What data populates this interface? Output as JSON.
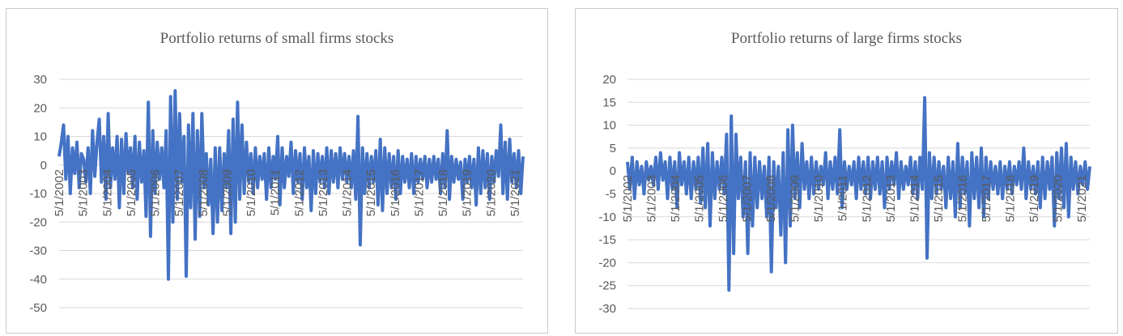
{
  "chart_data": [
    {
      "type": "line",
      "title": "Portfolio returns of small firms stocks",
      "xlabel": "",
      "ylabel": "",
      "ylim": [
        -50,
        30
      ],
      "yticks": [
        "30",
        "20",
        "10",
        "0",
        "-10",
        "-20",
        "-30",
        "-40",
        "-50"
      ],
      "xticks": [
        "5/1/2002",
        "5/1/2003",
        "5/1/2004",
        "5/1/2005",
        "5/1/2006",
        "5/1/2007",
        "5/1/2008",
        "5/1/2009",
        "5/1/2010",
        "5/1/2011",
        "5/1/2012",
        "5/1/2013",
        "5/1/2014",
        "5/1/2015",
        "5/1/2016",
        "5/1/2017",
        "5/1/2018",
        "5/1/2019",
        "5/1/2020",
        "5/1/2021"
      ],
      "grid": true,
      "series": [
        {
          "color": "#4472c4",
          "values": [
            3,
            8,
            14,
            -5,
            10,
            -10,
            6,
            -3,
            8,
            -8,
            4,
            2,
            -6,
            6,
            -10,
            12,
            -4,
            8,
            16,
            -6,
            10,
            -12,
            18,
            -8,
            6,
            -5,
            10,
            -15,
            9,
            -10,
            11,
            -3,
            6,
            -8,
            10,
            -12,
            8,
            -6,
            5,
            -18,
            22,
            -25,
            12,
            -10,
            8,
            -5,
            6,
            -8,
            12,
            -40,
            24,
            -20,
            26,
            -12,
            18,
            -6,
            10,
            -39,
            14,
            -15,
            18,
            -26,
            12,
            -18,
            18,
            -8,
            4,
            -14,
            2,
            -24,
            6,
            -20,
            6,
            -16,
            4,
            -8,
            12,
            -24,
            16,
            -20,
            22,
            -12,
            14,
            -10,
            8,
            -6,
            4,
            -10,
            6,
            -8,
            3,
            -5,
            4,
            -12,
            6,
            -8,
            3,
            -5,
            10,
            -14,
            6,
            -8,
            3,
            -4,
            8,
            -10,
            5,
            -6,
            4,
            -12,
            6,
            -8,
            3,
            -16,
            5,
            -10,
            4,
            -6,
            3,
            -8,
            6,
            -10,
            5,
            -6,
            4,
            -8,
            6,
            -5,
            4,
            -6,
            3,
            -8,
            5,
            -12,
            17,
            -28,
            6,
            -10,
            4,
            -8,
            3,
            -6,
            5,
            -14,
            9,
            -16,
            6,
            -10,
            4,
            -8,
            3,
            -12,
            5,
            -10,
            3,
            -6,
            2,
            -8,
            4,
            -10,
            3,
            -6,
            2,
            -5,
            3,
            -8,
            2,
            -6,
            3,
            -5,
            2,
            -10,
            4,
            -8,
            12,
            -12,
            3,
            -6,
            2,
            -5,
            1,
            -12,
            2,
            -6,
            3,
            -8,
            2,
            -14,
            6,
            -10,
            5,
            -8,
            4,
            -12,
            3,
            -6,
            5,
            -4,
            14,
            -10,
            8,
            -12,
            9,
            -6,
            4,
            -8,
            5,
            -10,
            3
          ]
        }
      ]
    },
    {
      "type": "line",
      "title": "Portfolio returns of large firms stocks",
      "xlabel": "",
      "ylabel": "",
      "ylim": [
        -30,
        20
      ],
      "yticks": [
        "20",
        "15",
        "10",
        "5",
        "0",
        "-5",
        "-10",
        "-15",
        "-20",
        "-25",
        "-30"
      ],
      "xticks": [
        "5/1/2002",
        "5/1/2003",
        "5/1/2004",
        "5/1/2005",
        "5/1/2006",
        "5/1/2007",
        "5/1/2008",
        "5/1/2009",
        "5/1/2010",
        "5/1/2011",
        "5/1/2012",
        "5/1/2013",
        "5/1/2014",
        "5/1/2015",
        "5/1/2016",
        "5/1/2017",
        "5/1/2018",
        "5/1/2019",
        "5/1/2020",
        "5/1/2021"
      ],
      "grid": true,
      "series": [
        {
          "color": "#4472c4",
          "values": [
            2,
            -4,
            3,
            -6,
            2,
            -3,
            1,
            -5,
            2,
            -2,
            1,
            -3,
            3,
            -4,
            4,
            -2,
            2,
            -6,
            3,
            -4,
            2,
            -8,
            4,
            -3,
            2,
            -5,
            3,
            -6,
            2,
            -4,
            3,
            -7,
            5,
            -8,
            6,
            -12,
            4,
            -6,
            2,
            -4,
            3,
            -5,
            8,
            -26,
            12,
            -18,
            8,
            -6,
            3,
            -10,
            2,
            -18,
            4,
            -12,
            3,
            -8,
            2,
            -6,
            1,
            -10,
            3,
            -22,
            2,
            -8,
            1,
            -14,
            4,
            -20,
            9,
            -12,
            10,
            -6,
            4,
            -8,
            6,
            -4,
            2,
            -6,
            3,
            -5,
            2,
            -4,
            1,
            -3,
            4,
            -6,
            2,
            -4,
            3,
            -5,
            9,
            -8,
            2,
            -4,
            1,
            -3,
            2,
            -6,
            3,
            -4,
            2,
            -5,
            3,
            -6,
            2,
            -4,
            3,
            -5,
            2,
            -8,
            3,
            -4,
            2,
            -3,
            4,
            -6,
            2,
            -4,
            1,
            -3,
            3,
            -5,
            2,
            -6,
            3,
            -4,
            16,
            -19,
            4,
            -6,
            3,
            -5,
            2,
            -4,
            1,
            -8,
            3,
            -6,
            2,
            -10,
            6,
            -8,
            3,
            -5,
            2,
            -12,
            4,
            -6,
            3,
            -8,
            5,
            -10,
            3,
            -6,
            2,
            -4,
            1,
            -5,
            2,
            -6,
            1,
            -4,
            2,
            -5,
            1,
            -3,
            2,
            -4,
            5,
            -6,
            2,
            -4,
            1,
            -5,
            2,
            -8,
            3,
            -6,
            2,
            -4,
            3,
            -12,
            4,
            -6,
            5,
            -8,
            6,
            -10,
            3,
            -4,
            2,
            -5,
            1,
            -3,
            2,
            -4,
            1
          ]
        }
      ]
    }
  ]
}
